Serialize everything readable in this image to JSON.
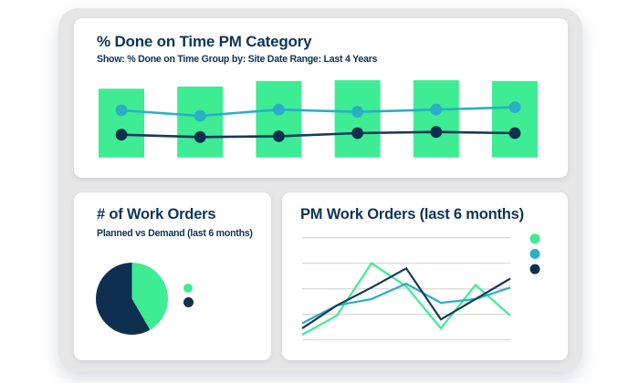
{
  "colors": {
    "green": "#3EEC93",
    "teal": "#2AAEC5",
    "navy_line": "#15395E",
    "navy_dark": "#0E2F50",
    "text": "#0D3459",
    "gridline": "#DBDBDB",
    "panel": "#E6E6E7",
    "card": "#FFFFFF",
    "page_bg": "#FFFFFF"
  },
  "top_card": {
    "title": "% Done on Time PM Category",
    "subtitle": "Show: % Done on Time Group by: Site Date Range: Last 4 Years",
    "chart_data": {
      "type": "combo_bar_line",
      "title": "% Done on Time PM Category",
      "axes_visible": false,
      "grid": false,
      "x_tick_labels": [],
      "categories_count": 6,
      "bars": {
        "color": "green",
        "values_pct": [
          89,
          92,
          99,
          100,
          100,
          99
        ]
      },
      "lines": [
        {
          "name": "teal-series",
          "line_color": "teal",
          "dot_color": "teal",
          "values_pct": [
            61,
            54,
            62,
            59,
            62,
            65
          ]
        },
        {
          "name": "navy-series",
          "line_color": "navy_line",
          "dot_color": "navy_dark",
          "values_pct": [
            29.5,
            26.5,
            27.5,
            31.5,
            33,
            31.5
          ]
        }
      ]
    }
  },
  "pie_card": {
    "title": "# of Work Orders",
    "subtitle": "Planned vs Demand (last 6 months)",
    "chart_data": {
      "type": "pie",
      "title": "# of Work Orders",
      "slices": [
        {
          "color": "green",
          "fraction": 0.42,
          "start_deg": 0,
          "end_deg": 150
        },
        {
          "color": "navy_dark",
          "fraction": 0.58,
          "start_deg": 150,
          "end_deg": 360
        }
      ],
      "legend_position": "right",
      "legend_dots": [
        "green",
        "navy_dark"
      ],
      "data_labels_visible": false
    }
  },
  "line_card": {
    "title": "PM Work Orders (last 6 months)",
    "chart_data": {
      "type": "line",
      "title": "PM Work Orders (last 6 months)",
      "x": [
        1,
        2,
        3,
        4,
        5,
        6,
        7
      ],
      "x_tick_labels": [],
      "ylim": [
        0,
        4
      ],
      "y_gridlines": [
        0,
        1,
        2,
        3,
        4
      ],
      "grid": "horizontal-only",
      "axes_visible": false,
      "legend_position": "right",
      "legend_dots": [
        "green",
        "teal",
        "navy_dark"
      ],
      "series": [
        {
          "name": "green-series",
          "color": "green",
          "values": [
            0.2,
            0.95,
            3.0,
            2.1,
            0.45,
            2.15,
            0.95
          ]
        },
        {
          "name": "teal-series",
          "color": "teal",
          "values": [
            0.65,
            1.35,
            1.6,
            2.2,
            1.45,
            1.6,
            2.05
          ]
        },
        {
          "name": "navy-series",
          "color": "navy_line",
          "values": [
            0.45,
            1.35,
            2.05,
            2.8,
            0.8,
            1.6,
            2.4
          ]
        }
      ]
    }
  }
}
